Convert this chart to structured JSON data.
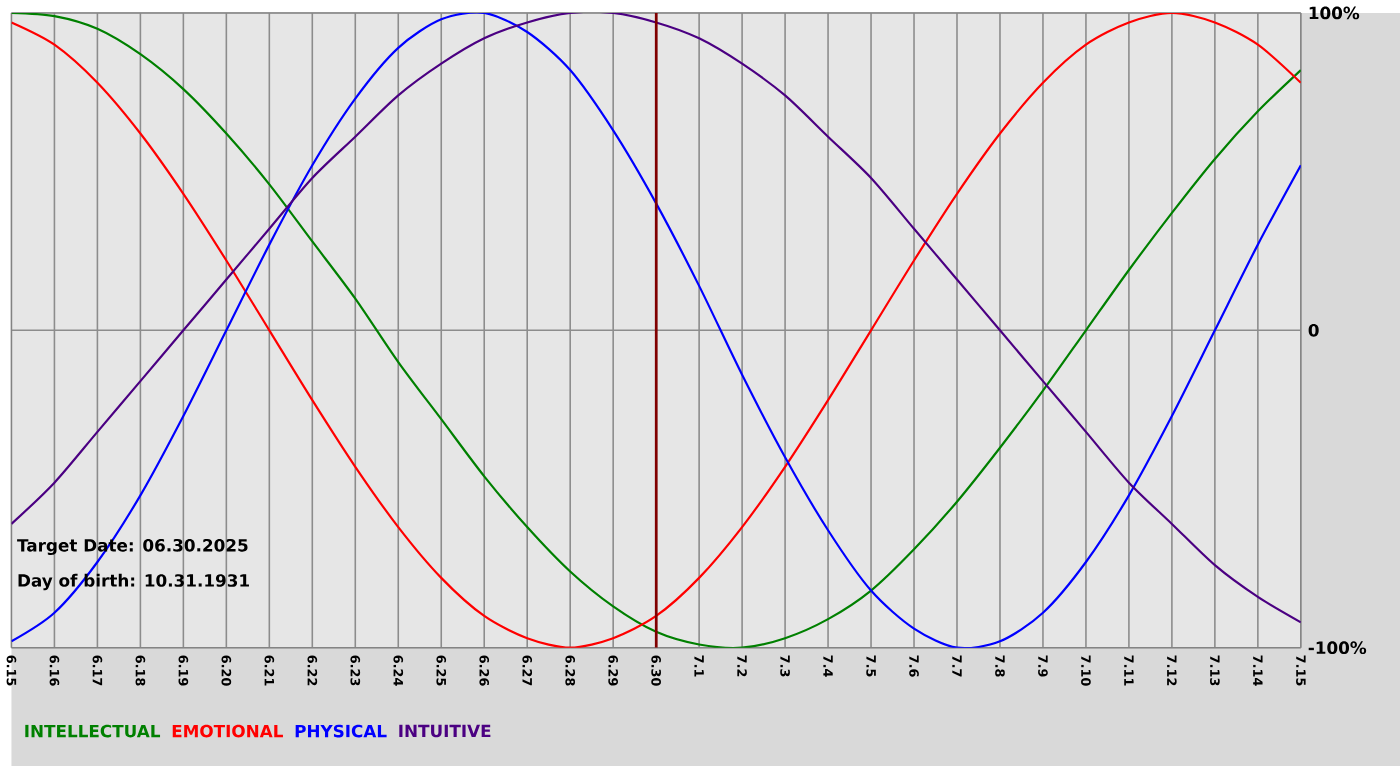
{
  "chart_data": {
    "type": "line",
    "categories": [
      "6.15",
      "6.16",
      "6.17",
      "6.18",
      "6.19",
      "6.20",
      "6.21",
      "6.22",
      "6.23",
      "6.24",
      "6.25",
      "6.26",
      "6.27",
      "6.28",
      "6.29",
      "6.30",
      "7.1",
      "7.2",
      "7.3",
      "7.4",
      "7.5",
      "7.6",
      "7.7",
      "7.8",
      "7.9",
      "7.10",
      "7.11",
      "7.12",
      "7.13",
      "7.14",
      "7.15"
    ],
    "series": [
      {
        "name": "INTELLECTUAL",
        "color": "#008000",
        "values": [
          100,
          99,
          95,
          87,
          76,
          62,
          46,
          28,
          10,
          -10,
          -28,
          -46,
          -62,
          -76,
          -87,
          -95,
          -99,
          -100,
          -97,
          -91,
          -82,
          -69,
          -54,
          -37,
          -19,
          0,
          19,
          37,
          54,
          69,
          82
        ]
      },
      {
        "name": "EMOTIONAL",
        "color": "#ff0000",
        "values": [
          97,
          90,
          78,
          62,
          43,
          22,
          0,
          -22,
          -43,
          -62,
          -78,
          -90,
          -97,
          -100,
          -97,
          -90,
          -78,
          -62,
          -43,
          -22,
          0,
          22,
          43,
          62,
          78,
          90,
          97,
          100,
          97,
          90,
          78
        ]
      },
      {
        "name": "PHYSICAL",
        "color": "#0000ff",
        "values": [
          -98,
          -89,
          -73,
          -52,
          -27,
          0,
          27,
          52,
          73,
          89,
          98,
          100,
          94,
          82,
          63,
          40,
          14,
          -14,
          -40,
          -63,
          -82,
          -94,
          -100,
          -98,
          -89,
          -73,
          -52,
          -27,
          0,
          27,
          52
        ]
      },
      {
        "name": "INTUITIVE",
        "color": "#4b0082",
        "values": [
          -61,
          -48,
          -32,
          -16,
          0,
          16,
          32,
          48,
          61,
          74,
          84,
          92,
          97,
          100,
          100,
          97,
          92,
          84,
          74,
          61,
          48,
          32,
          16,
          0,
          -16,
          -32,
          -48,
          -61,
          -74,
          -84,
          -92
        ]
      }
    ],
    "ylim": [
      -100,
      100
    ],
    "yticks": [
      {
        "value": 100,
        "label": "100%"
      },
      0,
      {
        "value": -100,
        "label": "-100%"
      }
    ],
    "grid": true,
    "legend": "bottom left",
    "ref_lines": [
      {
        "axis": "x",
        "value": "6.30",
        "color": "#800000"
      }
    ],
    "annotations": [
      "Target Date: 06.30.2025",
      "Day of birth: 10.31.1931"
    ]
  }
}
